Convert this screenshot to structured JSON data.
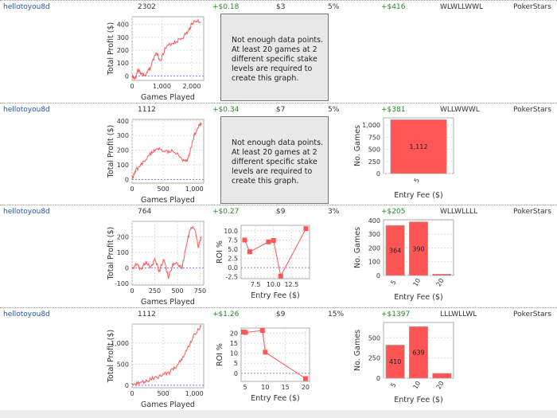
{
  "rows": [
    {
      "player": "hellotoyou8d",
      "games": "2302",
      "avg_profit": "+$0.18",
      "avg_stake": "$3",
      "roi": "5%",
      "total_profit": "+$416",
      "recent": "WLWLLWWL",
      "site": "PokerStars",
      "message": "Not enough data points.\nAt least 20 games at 2\ndifferent specific stake\nlevels are required to\ncreate this graph."
    },
    {
      "player": "hellotoyou8d",
      "games": "1112",
      "avg_profit": "+$0.34",
      "avg_stake": "$7",
      "roi": "5%",
      "total_profit": "+$381",
      "recent": "WLLWWWL",
      "site": "PokerStars",
      "message": "Not enough data points.\nAt least 20 games at 2\ndifferent specific stake\nlevels are required to\ncreate this graph."
    },
    {
      "player": "hellotoyou8d",
      "games": "764",
      "avg_profit": "+$0.27",
      "avg_stake": "$9",
      "roi": "3%",
      "total_profit": "+$205",
      "recent": "WLLWLLLL",
      "site": "PokerStars"
    },
    {
      "player": "hellotoyou8d",
      "games": "1112",
      "avg_profit": "+$1.26",
      "avg_stake": "$9",
      "roi": "15%",
      "total_profit": "+$1397",
      "recent": "LLLWLLWL",
      "site": "PokerStars"
    }
  ],
  "chart_data": [
    {
      "type": "line",
      "row": 0,
      "xlabel": "Games Played",
      "ylabel": "Total Profit ($)",
      "xlim": [
        0,
        2400
      ],
      "ylim": [
        -35,
        460
      ],
      "xticks": [
        0,
        1000,
        2000
      ],
      "xtick_labels": [
        "0",
        "1,000",
        "2,000"
      ],
      "yticks": [
        0,
        100,
        200,
        300,
        400
      ],
      "ytick_labels": [
        "0",
        "100",
        "200",
        "300",
        "400"
      ],
      "points": [
        [
          0,
          0
        ],
        [
          100,
          -20
        ],
        [
          200,
          50
        ],
        [
          300,
          20
        ],
        [
          450,
          0
        ],
        [
          600,
          60
        ],
        [
          800,
          180
        ],
        [
          950,
          120
        ],
        [
          1100,
          210
        ],
        [
          1300,
          250
        ],
        [
          1500,
          270
        ],
        [
          1700,
          300
        ],
        [
          1900,
          350
        ],
        [
          2000,
          410
        ],
        [
          2200,
          430
        ],
        [
          2302,
          415
        ]
      ]
    },
    {
      "type": "line",
      "row": 1,
      "xlabel": "Games Played",
      "ylabel": "Total Profit ($)",
      "xlim": [
        0,
        1150
      ],
      "ylim": [
        -25,
        410
      ],
      "xticks": [
        0,
        500,
        1000
      ],
      "xtick_labels": [
        "0",
        "500",
        "1,000"
      ],
      "yticks": [
        0,
        100,
        200,
        300,
        400
      ],
      "ytick_labels": [
        "0",
        "100",
        "200",
        "300",
        "400"
      ],
      "points": [
        [
          0,
          0
        ],
        [
          50,
          60
        ],
        [
          150,
          100
        ],
        [
          250,
          150
        ],
        [
          350,
          200
        ],
        [
          450,
          210
        ],
        [
          550,
          190
        ],
        [
          650,
          200
        ],
        [
          750,
          160
        ],
        [
          850,
          120
        ],
        [
          900,
          140
        ],
        [
          950,
          220
        ],
        [
          1000,
          300
        ],
        [
          1050,
          350
        ],
        [
          1112,
          385
        ]
      ]
    },
    {
      "type": "bar",
      "row": 1,
      "xlabel": "Entry Fee ($)",
      "ylabel": "No. Games",
      "categories": [
        "5"
      ],
      "values": [
        1112
      ],
      "value_labels": [
        "1,112"
      ],
      "ylim": [
        0,
        1150
      ],
      "yticks": [
        0,
        250,
        500,
        750,
        1000
      ],
      "ytick_labels": [
        "0",
        "250",
        "500",
        "750",
        "1,000"
      ]
    },
    {
      "type": "line",
      "row": 2,
      "xlabel": "Games Played",
      "ylabel": "Total Profit ($)",
      "xlim": [
        0,
        790
      ],
      "ylim": [
        -110,
        300
      ],
      "xticks": [
        0,
        250,
        500,
        750
      ],
      "xtick_labels": [
        "0",
        "250",
        "500",
        "750"
      ],
      "yticks": [
        -100,
        0,
        100,
        200
      ],
      "ytick_labels": [
        "-100",
        "0",
        "100",
        "200"
      ],
      "points": [
        [
          0,
          0
        ],
        [
          50,
          20
        ],
        [
          100,
          -10
        ],
        [
          150,
          40
        ],
        [
          200,
          0
        ],
        [
          250,
          50
        ],
        [
          300,
          -20
        ],
        [
          350,
          60
        ],
        [
          400,
          -60
        ],
        [
          450,
          20
        ],
        [
          500,
          30
        ],
        [
          550,
          0
        ],
        [
          600,
          150
        ],
        [
          650,
          270
        ],
        [
          700,
          230
        ],
        [
          730,
          140
        ],
        [
          764,
          200
        ]
      ]
    },
    {
      "type": "scatter-line",
      "row": 2,
      "xlabel": "Entry Fee ($)",
      "ylabel": "ROI %",
      "xlim": [
        5.5,
        15
      ],
      "ylim": [
        -3,
        11.5
      ],
      "xticks": [
        7.5,
        10,
        12.5
      ],
      "xtick_labels": [
        "7.5",
        "10.0",
        "12.5"
      ],
      "yticks": [
        -2.5,
        0,
        2.5,
        5,
        7.5,
        10
      ],
      "ytick_labels": [
        "-2.5",
        "0.0",
        "2.5",
        "5.0",
        "7.5",
        "10.0"
      ],
      "points": [
        [
          6,
          7.5
        ],
        [
          6.7,
          4.3
        ],
        [
          9.3,
          7
        ],
        [
          10,
          7.4
        ],
        [
          11,
          -2.3
        ],
        [
          14.5,
          10.6
        ]
      ]
    },
    {
      "type": "bar",
      "row": 2,
      "xlabel": "Entry Fee ($)",
      "ylabel": "No. Games",
      "categories": [
        "5",
        "10",
        "20"
      ],
      "values": [
        364,
        390,
        10
      ],
      "value_labels": [
        "364",
        "390",
        ""
      ],
      "ylim": [
        0,
        405
      ],
      "yticks": [
        0,
        100,
        200,
        300,
        400
      ],
      "ytick_labels": [
        "0",
        "100",
        "200",
        "300",
        "400"
      ]
    },
    {
      "type": "line",
      "row": 3,
      "xlabel": "Games Played",
      "ylabel": "Total Profit ($)",
      "xlim": [
        0,
        1150
      ],
      "ylim": [
        -60,
        1450
      ],
      "xticks": [
        0,
        500,
        1000
      ],
      "xtick_labels": [
        "0",
        "500",
        "1,000"
      ],
      "yticks": [
        0,
        500,
        1000
      ],
      "ytick_labels": [
        "0",
        "500",
        "1,000"
      ],
      "points": [
        [
          0,
          0
        ],
        [
          100,
          50
        ],
        [
          200,
          80
        ],
        [
          300,
          150
        ],
        [
          400,
          200
        ],
        [
          500,
          250
        ],
        [
          600,
          300
        ],
        [
          700,
          450
        ],
        [
          800,
          600
        ],
        [
          900,
          900
        ],
        [
          1000,
          1200
        ],
        [
          1112,
          1400
        ]
      ]
    },
    {
      "type": "scatter-line",
      "row": 3,
      "xlabel": "Entry Fee ($)",
      "ylabel": "ROI %",
      "xlim": [
        4,
        21
      ],
      "ylim": [
        -4,
        22.5
      ],
      "xticks": [
        5,
        10,
        15,
        20
      ],
      "xtick_labels": [
        "5",
        "10",
        "15",
        "20"
      ],
      "yticks": [
        0,
        5,
        10,
        15,
        20
      ],
      "ytick_labels": [
        "0",
        "5",
        "10",
        "15",
        "20"
      ],
      "points": [
        [
          4.6,
          20.5
        ],
        [
          5.1,
          20.3
        ],
        [
          9.3,
          21.3
        ],
        [
          10,
          10.5
        ],
        [
          20,
          -2.6
        ]
      ]
    },
    {
      "type": "bar",
      "row": 3,
      "xlabel": "Entry Fee ($)",
      "ylabel": "No. Games",
      "categories": [
        "5",
        "10",
        "20"
      ],
      "values": [
        410,
        639,
        60
      ],
      "value_labels": [
        "410",
        "639",
        ""
      ],
      "ylim": [
        0,
        690
      ],
      "yticks": [
        0,
        250,
        500
      ],
      "ytick_labels": [
        "0",
        "250",
        "500"
      ]
    }
  ],
  "colors": {
    "series": "#ff5555",
    "bar": "#ff5555",
    "zero_line": "#6666ff",
    "profit": "#228822",
    "link": "#2255aa"
  }
}
